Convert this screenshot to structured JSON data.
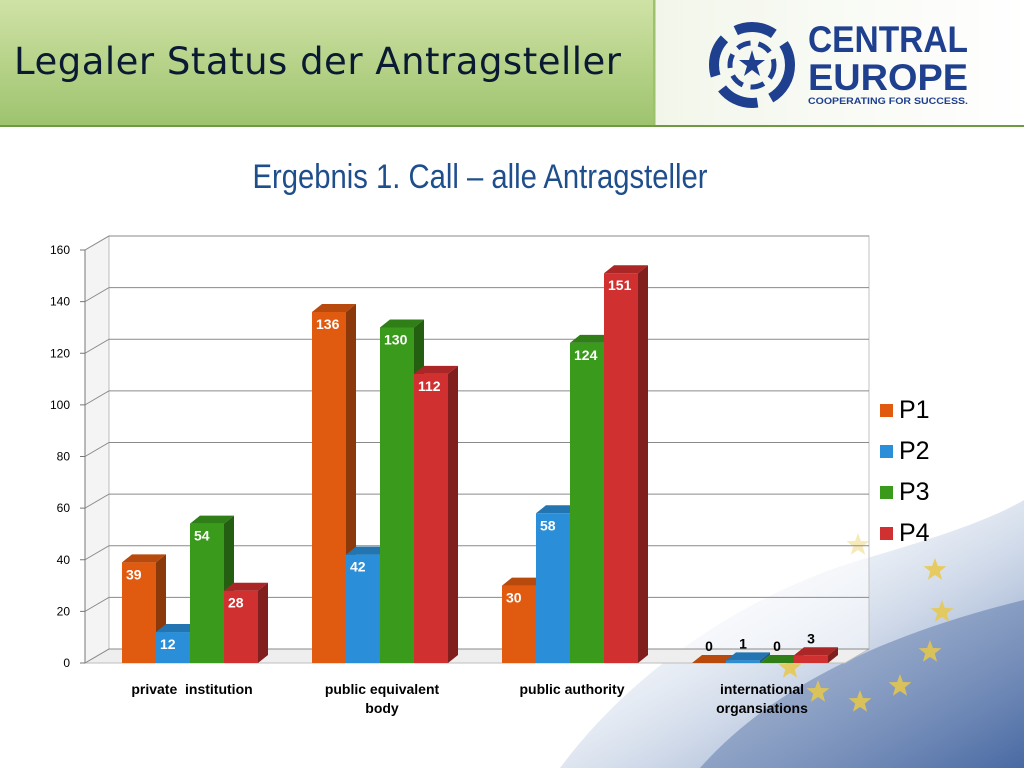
{
  "header": {
    "title": "Legaler Status der Antragsteller",
    "logo": {
      "line1": "CENTRAL",
      "line2": "EUROPE",
      "tagline": "COOPERATING FOR SUCCESS."
    }
  },
  "colors": {
    "P1": "#e05a10",
    "P2": "#2a8fd8",
    "P3": "#3a9a1c",
    "P4": "#d03030",
    "title": "#1f4e8c"
  },
  "chart_data": {
    "type": "bar",
    "title": "Ergebnis 1. Call – alle Antragsteller",
    "categories": [
      "private  institution",
      "public equivalent body",
      "public authority",
      "international organsiations"
    ],
    "series": [
      {
        "name": "P1",
        "values": [
          39,
          136,
          30,
          0
        ]
      },
      {
        "name": "P2",
        "values": [
          12,
          42,
          58,
          1
        ]
      },
      {
        "name": "P3",
        "values": [
          54,
          130,
          124,
          0
        ]
      },
      {
        "name": "P4",
        "values": [
          28,
          112,
          151,
          3
        ]
      }
    ],
    "ylim": [
      0,
      160
    ],
    "yticks": [
      "0",
      "20",
      "40",
      "60",
      "80",
      "100",
      "120",
      "140",
      "160"
    ],
    "grid": true,
    "legend_position": "right"
  }
}
